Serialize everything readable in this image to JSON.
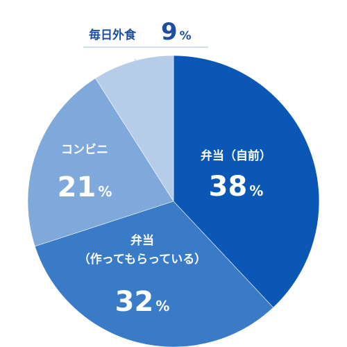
{
  "chart_data": {
    "type": "pie",
    "title": "",
    "unit": "%",
    "slices": [
      {
        "label": "弁当（自前）",
        "label_lines": [
          "弁当（自前）"
        ],
        "value": 38,
        "color": "#0a57b5",
        "text_color": "#ffffff"
      },
      {
        "label": "弁当（作ってもらっている）",
        "label_lines": [
          "弁当",
          "（作ってもらっている）"
        ],
        "value": 32,
        "color": "#3a7bc8",
        "text_color": "#ffffff"
      },
      {
        "label": "コンビニ",
        "label_lines": [
          "コンビニ"
        ],
        "value": 21,
        "color": "#7ea9da",
        "text_color": "#ffffff"
      },
      {
        "label": "毎日外食",
        "label_lines": [
          "毎日外食"
        ],
        "value": 9,
        "color": "#b5cde9",
        "text_color": "#1d4f9e"
      }
    ]
  }
}
